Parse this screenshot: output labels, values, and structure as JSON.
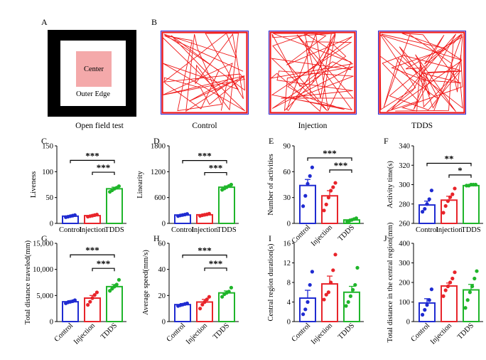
{
  "panels": {
    "A": {
      "letter": "A",
      "caption": "Open field test",
      "center_label": "Center",
      "outer_label": "Outer Edge"
    },
    "B": {
      "letter": "B",
      "tracks": [
        {
          "caption": "Control"
        },
        {
          "caption": "Injection"
        },
        {
          "caption": "TDDS"
        }
      ]
    }
  },
  "colors": {
    "control": "#1f2bd1",
    "injection": "#e8242a",
    "tdds": "#1fb52a",
    "track": "#f01818",
    "arena": "#2a2ad8"
  },
  "chart_data": [
    {
      "id": "C",
      "type": "bar",
      "title": "",
      "xlabel": "",
      "ylabel": "Liveness",
      "categories": [
        "Control",
        "Injection",
        "TDDS"
      ],
      "values": [
        14,
        15,
        67
      ],
      "errors": [
        1,
        1,
        3
      ],
      "points": [
        [
          12,
          13,
          14,
          15,
          16
        ],
        [
          13,
          14,
          15,
          16,
          17
        ],
        [
          61,
          64,
          67,
          69,
          72
        ]
      ],
      "ylim": [
        0,
        150
      ],
      "yticks": [
        0,
        50,
        100,
        150
      ],
      "ytick_labels": [
        "0",
        "50",
        "100",
        "150"
      ],
      "rotate_xticks": false,
      "sig": [
        {
          "from": 0,
          "to": 2,
          "label": "***",
          "y": 122
        },
        {
          "from": 1,
          "to": 2,
          "label": "***",
          "y": 99
        }
      ]
    },
    {
      "id": "D",
      "type": "bar",
      "title": "",
      "xlabel": "",
      "ylabel": "Linearity",
      "categories": [
        "Control",
        "Injection",
        "TDDS"
      ],
      "values": [
        195,
        200,
        840
      ],
      "errors": [
        12,
        12,
        30
      ],
      "points": [
        [
          170,
          185,
          195,
          205,
          220
        ],
        [
          175,
          190,
          200,
          210,
          225
        ],
        [
          780,
          810,
          840,
          870,
          900
        ]
      ],
      "ylim": [
        0,
        1800
      ],
      "yticks": [
        0,
        600,
        1200,
        1800
      ],
      "ytick_labels": [
        "0",
        "600",
        "1200",
        "1800"
      ],
      "rotate_xticks": false,
      "sig": [
        {
          "from": 0,
          "to": 2,
          "label": "***",
          "y": 1460
        },
        {
          "from": 1,
          "to": 2,
          "label": "***",
          "y": 1180
        }
      ]
    },
    {
      "id": "E",
      "type": "bar",
      "title": "",
      "xlabel": "",
      "ylabel": "Number of activities",
      "categories": [
        "Control",
        "Injection",
        "TDDS"
      ],
      "values": [
        44,
        32,
        4
      ],
      "errors": [
        7,
        6,
        1
      ],
      "points": [
        [
          20,
          32,
          46,
          55,
          65
        ],
        [
          15,
          22,
          30,
          38,
          42,
          47
        ],
        [
          2,
          3,
          4,
          5,
          6
        ]
      ],
      "ylim": [
        0,
        90
      ],
      "yticks": [
        0,
        30,
        60,
        90
      ],
      "ytick_labels": [
        "0",
        "30",
        "60",
        "90"
      ],
      "rotate_xticks": true,
      "sig": [
        {
          "from": 0,
          "to": 2,
          "label": "***",
          "y": 76
        },
        {
          "from": 1,
          "to": 2,
          "label": "***",
          "y": 62
        }
      ]
    },
    {
      "id": "F",
      "type": "bar",
      "title": "",
      "xlabel": "",
      "ylabel": "Activity time(s)",
      "categories": [
        "Control",
        "Injection",
        "TDDS"
      ],
      "values": [
        279,
        284,
        299
      ],
      "errors": [
        4,
        4,
        0.5
      ],
      "points": [
        [
          272,
          275,
          280,
          285,
          294
        ],
        [
          271,
          278,
          283,
          287,
          290,
          296
        ],
        [
          299,
          299,
          300,
          300,
          300
        ]
      ],
      "ylim": [
        260,
        340
      ],
      "yticks": [
        260,
        280,
        300,
        320,
        340
      ],
      "ytick_labels": [
        "260",
        "280",
        "300",
        "320",
        "340"
      ],
      "rotate_xticks": false,
      "sig": [
        {
          "from": 0,
          "to": 2,
          "label": "**",
          "y": 322
        },
        {
          "from": 1,
          "to": 2,
          "label": "*",
          "y": 310
        }
      ]
    },
    {
      "id": "G",
      "type": "bar",
      "title": "",
      "xlabel": "",
      "ylabel": "Total distance traveled(mm)",
      "categories": [
        "Control",
        "Injection",
        "TDDS"
      ],
      "values": [
        3800,
        4500,
        6700
      ],
      "errors": [
        200,
        500,
        400
      ],
      "points": [
        [
          3500,
          3700,
          3800,
          3900,
          4100
        ],
        [
          3200,
          3800,
          4500,
          5100,
          5600
        ],
        [
          5900,
          6300,
          6700,
          7100,
          8000
        ]
      ],
      "ylim": [
        0,
        15000
      ],
      "yticks": [
        0,
        5000,
        10000,
        15000
      ],
      "ytick_labels": [
        "0",
        "5,000",
        "10,000",
        "15,000"
      ],
      "rotate_xticks": true,
      "sig": [
        {
          "from": 0,
          "to": 2,
          "label": "***",
          "y": 12800
        },
        {
          "from": 1,
          "to": 2,
          "label": "***",
          "y": 10200
        }
      ]
    },
    {
      "id": "H",
      "type": "bar",
      "title": "",
      "xlabel": "",
      "ylabel": "Average speed(mm/s)",
      "categories": [
        "Control",
        "Injection",
        "TDDS"
      ],
      "values": [
        13,
        15,
        22
      ],
      "errors": [
        0.8,
        2,
        1.5
      ],
      "points": [
        [
          12,
          12.5,
          13,
          13.5,
          14
        ],
        [
          10,
          13,
          15,
          17,
          19
        ],
        [
          19,
          21,
          22,
          23,
          26
        ]
      ],
      "ylim": [
        0,
        60
      ],
      "yticks": [
        0,
        20,
        40,
        60
      ],
      "ytick_labels": [
        "0",
        "20",
        "40",
        "60"
      ],
      "rotate_xticks": true,
      "sig": [
        {
          "from": 0,
          "to": 2,
          "label": "***",
          "y": 51
        },
        {
          "from": 1,
          "to": 2,
          "label": "***",
          "y": 41
        }
      ]
    },
    {
      "id": "I",
      "type": "bar",
      "title": "",
      "xlabel": "",
      "ylabel": "Central region duration(s)",
      "categories": [
        "Control",
        "Injection",
        "TDDS"
      ],
      "values": [
        4.8,
        7.7,
        6.0
      ],
      "errors": [
        1.6,
        1.6,
        1.2
      ],
      "points": [
        [
          1.5,
          2.5,
          4.0,
          7.5,
          10.2
        ],
        [
          4.5,
          5.5,
          6.0,
          8.0,
          10.5,
          13.7
        ],
        [
          3.2,
          4.0,
          5.2,
          6.5,
          7.5,
          11.0
        ]
      ],
      "ylim": [
        0,
        16
      ],
      "yticks": [
        0,
        4,
        8,
        12,
        16
      ],
      "ytick_labels": [
        "0",
        "4",
        "8",
        "12",
        "16"
      ],
      "rotate_xticks": true,
      "sig": []
    },
    {
      "id": "J",
      "type": "bar",
      "title": "",
      "xlabel": "",
      "ylabel": "Total distance in the central region(mm)",
      "categories": [
        "Control",
        "Injection",
        "TDDS"
      ],
      "values": [
        95,
        182,
        162
      ],
      "errors": [
        22,
        15,
        28
      ],
      "points": [
        [
          35,
          60,
          85,
          110,
          165
        ],
        [
          130,
          160,
          180,
          200,
          220,
          252
        ],
        [
          70,
          110,
          150,
          180,
          220,
          258
        ]
      ],
      "ylim": [
        0,
        400
      ],
      "yticks": [
        0,
        100,
        200,
        300,
        400
      ],
      "ytick_labels": [
        "0",
        "100",
        "200",
        "300",
        "400"
      ],
      "rotate_xticks": true,
      "sig": []
    }
  ]
}
